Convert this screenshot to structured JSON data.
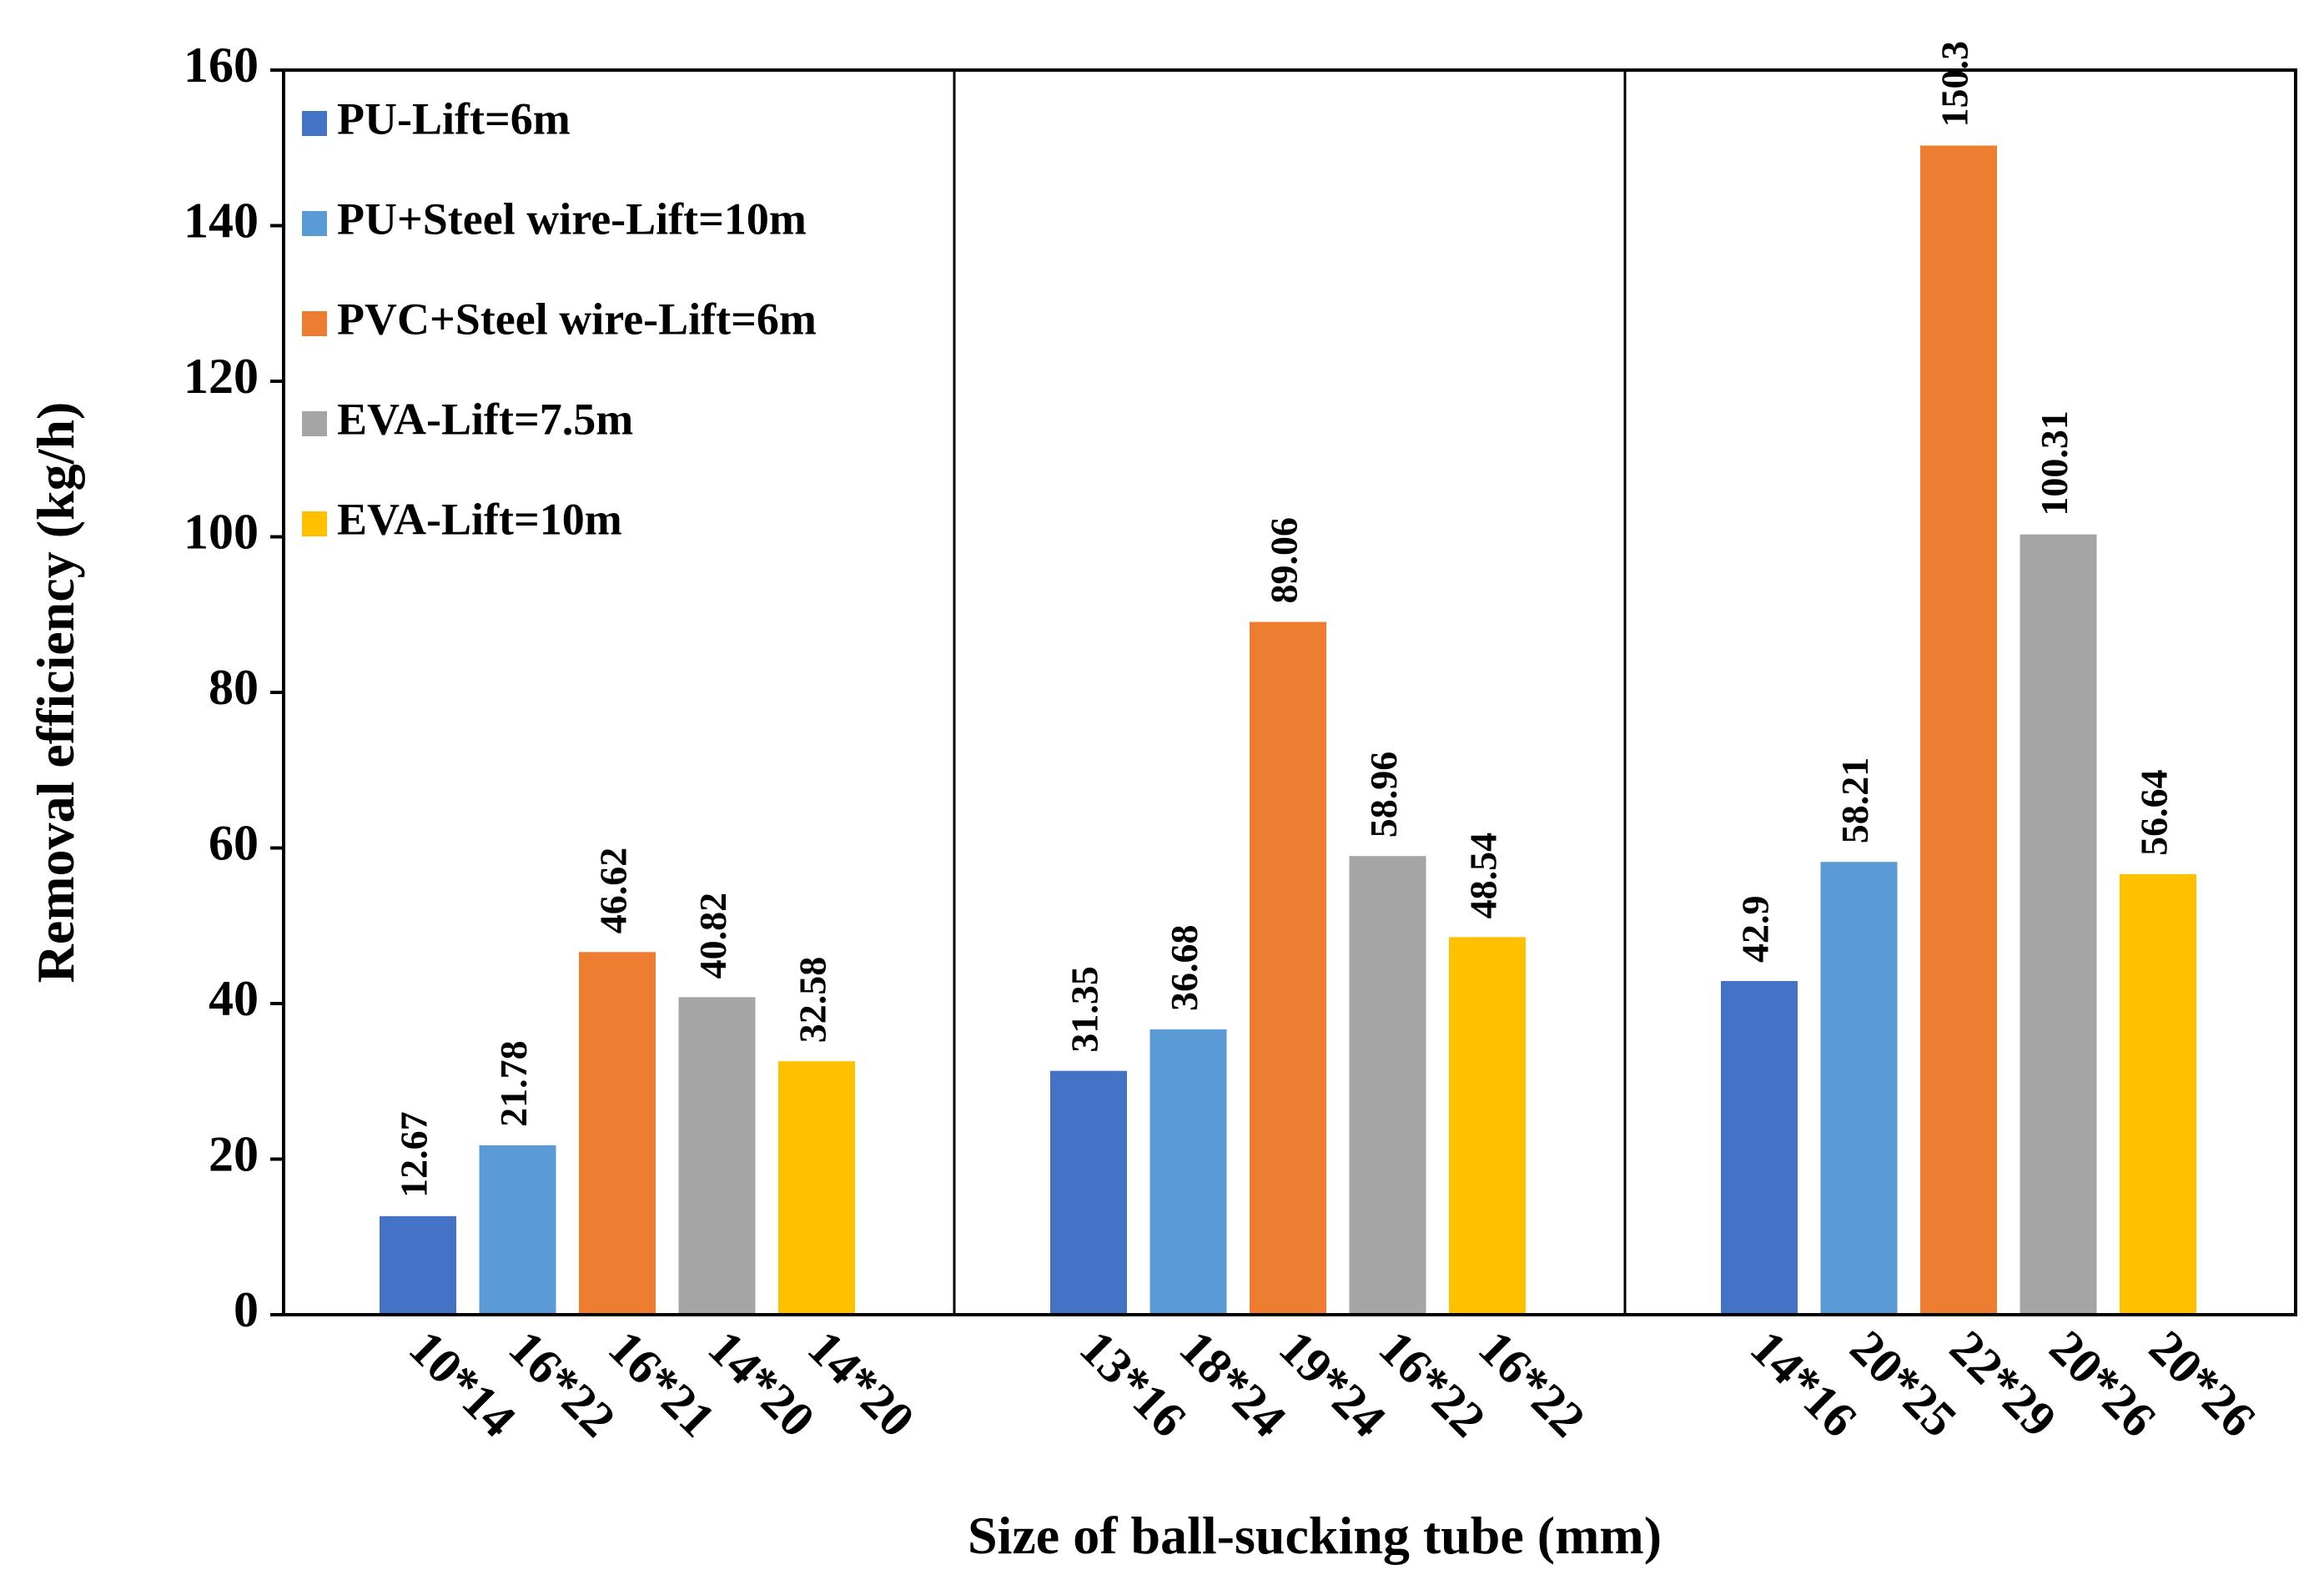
{
  "chart_data": {
    "type": "bar",
    "title": "",
    "xlabel": "Size of ball-sucking tube (mm)",
    "ylabel": "Removal efficiency (kg/h)",
    "ylim": [
      0,
      160
    ],
    "yticks": [
      0,
      20,
      40,
      60,
      80,
      100,
      120,
      140,
      160
    ],
    "ytick_labels": [
      "0",
      "20",
      "40",
      "60",
      "80",
      "100",
      "120",
      "140",
      "160"
    ],
    "grid": false,
    "legend_position": "top-left",
    "series": [
      {
        "name": "PU-Lift=6m",
        "color": "#4472C4"
      },
      {
        "name": "PU+Steel wire-Lift=10m",
        "color": "#5B9BD5"
      },
      {
        "name": "PVC+Steel wire-Lift=6m",
        "color": "#ED7D31"
      },
      {
        "name": "EVA-Lift=7.5m",
        "color": "#A5A5A5"
      },
      {
        "name": "EVA-Lift=10m",
        "color": "#FFC000"
      }
    ],
    "groups": [
      {
        "categories": [
          "10*14",
          "16*22",
          "16*21",
          "14*20",
          "14*20"
        ],
        "values": [
          12.67,
          21.78,
          46.62,
          40.82,
          32.58
        ],
        "labels": [
          "12.67",
          "21.78",
          "46.62",
          "40.82",
          "32.58"
        ]
      },
      {
        "categories": [
          "13*16",
          "18*24",
          "19*24",
          "16*22",
          "16*22"
        ],
        "values": [
          31.35,
          36.68,
          89.06,
          58.96,
          48.54
        ],
        "labels": [
          "31.35",
          "36.68",
          "89.06",
          "58.96",
          "48.54"
        ]
      },
      {
        "categories": [
          "14*16",
          "20*25",
          "22*29",
          "20*26",
          "20*26"
        ],
        "values": [
          42.9,
          58.21,
          150.3,
          100.31,
          56.64
        ],
        "labels": [
          "42.9",
          "58.21",
          "150.3",
          "100.31",
          "56.64"
        ]
      }
    ]
  }
}
